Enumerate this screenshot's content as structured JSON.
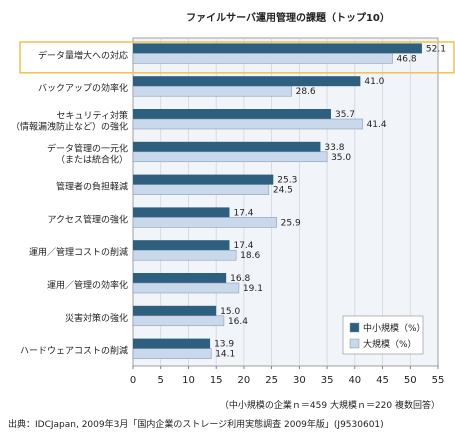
{
  "chart_data": {
    "type": "bar",
    "orientation": "horizontal",
    "title": "ファイルサーバ運用管理の課題（トップ10）",
    "categories": [
      [
        "データ量増大への対応"
      ],
      [
        "バックアップの効率化"
      ],
      [
        "セキュリティ対策",
        "（情報漏洩防止など）の強化"
      ],
      [
        "データ管理の一元化",
        "（または統合化）"
      ],
      [
        "管理者の負担軽減"
      ],
      [
        "アクセス管理の強化"
      ],
      [
        "運用／管理コストの削減"
      ],
      [
        "運用／管理の効率化"
      ],
      [
        "災害対策の強化"
      ],
      [
        "ハードウェアコストの削減"
      ]
    ],
    "series": [
      {
        "name": "中小規模（%）",
        "color": "#2f5f7f",
        "values": [
          52.1,
          41.0,
          35.7,
          33.8,
          25.3,
          17.4,
          17.4,
          16.8,
          15.0,
          13.9
        ],
        "labels": [
          "52.1",
          "41.0",
          "35.7",
          "33.8",
          "25.3",
          "17.4",
          "17.4",
          "16.8",
          "15.0",
          "13.9"
        ]
      },
      {
        "name": "大規模（%）",
        "color": "#c9d8ea",
        "values": [
          46.8,
          28.6,
          41.4,
          35.0,
          24.5,
          25.9,
          18.6,
          19.1,
          16.4,
          14.1
        ],
        "labels": [
          "46.8",
          "28.6",
          "41.4",
          "35.0",
          "24.5",
          "25.9",
          "18.6",
          "19.1",
          "16.4",
          "14.1"
        ]
      }
    ],
    "xlim": [
      0,
      55
    ],
    "xticks": [
      0,
      5,
      10,
      15,
      20,
      25,
      30,
      35,
      40,
      45,
      50,
      55
    ],
    "grid": true,
    "legend_position": "bottom-right",
    "highlighted_category_index": 0,
    "highlight_color": "#f2c14e",
    "plot_background": "#f1f5f9",
    "note": "（中小規模の企業ｎ＝459 大規模ｎ＝220 複数回答）",
    "source": "出典：IDCJapan, 2009年3月「国内企業のストレージ利用実態調査 2009年版」(J9530601)"
  }
}
